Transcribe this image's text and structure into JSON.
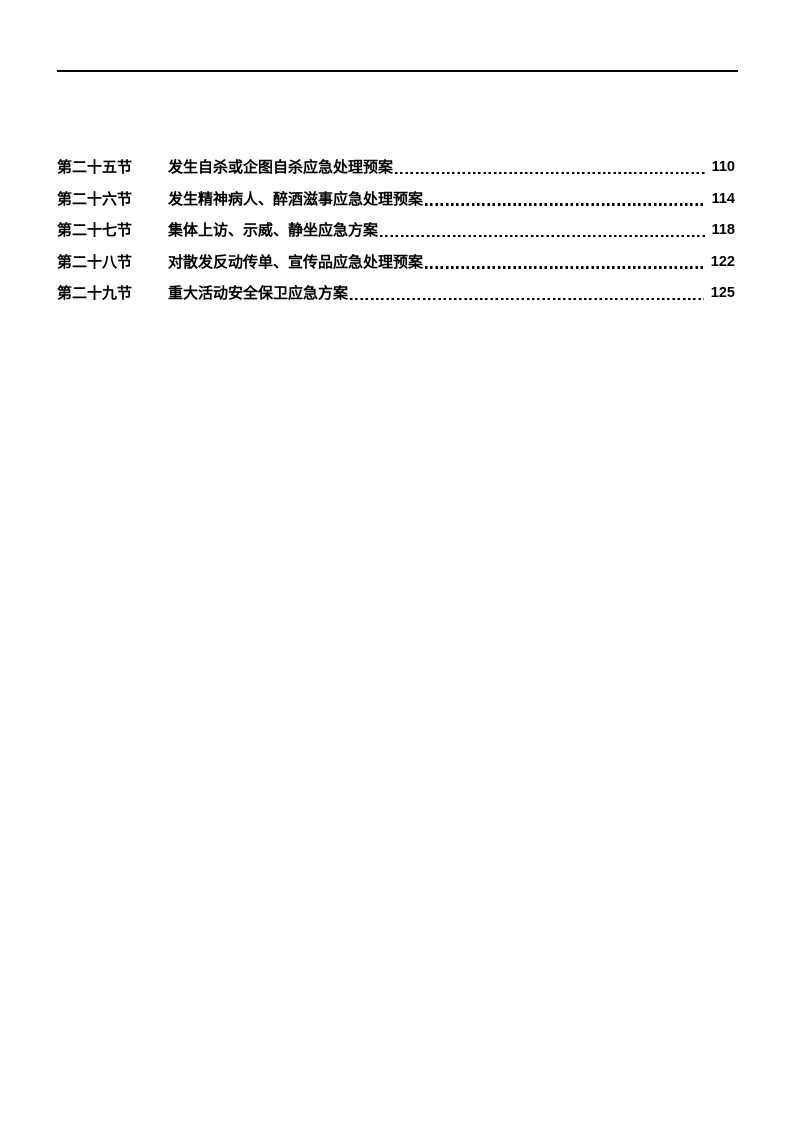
{
  "page": {
    "background_color": "#ffffff",
    "text_color": "#000000",
    "header_rule_color": "#000000"
  },
  "toc": {
    "entries": [
      {
        "section": "第二十五节",
        "title": "发生自杀或企图自杀应急处理预案",
        "page": "110"
      },
      {
        "section": "第二十六节",
        "title": "发生精神病人、醉酒滋事应急处理预案",
        "page": "114"
      },
      {
        "section": "第二十七节",
        "title": "集体上访、示威、静坐应急方案",
        "page": "118"
      },
      {
        "section": "第二十八节",
        "title": "对散发反动传单、宣传品应急处理预案",
        "page": "122"
      },
      {
        "section": "第二十九节",
        "title": "重大活动安全保卫应急方案",
        "page": "125"
      }
    ]
  }
}
